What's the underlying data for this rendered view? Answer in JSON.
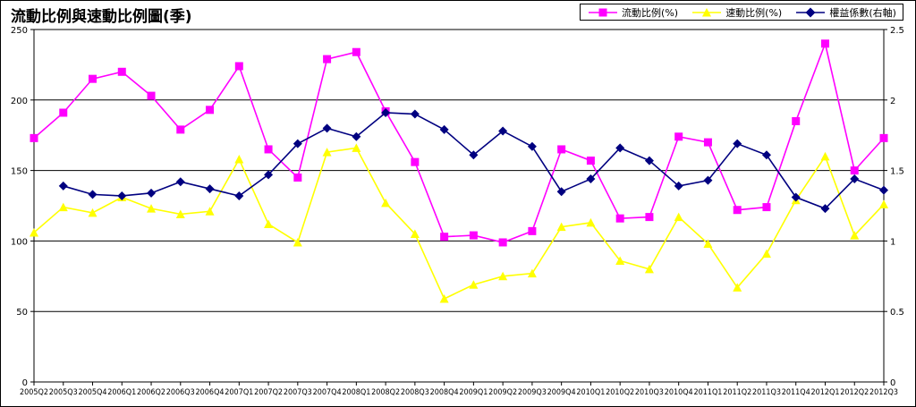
{
  "chart_data": {
    "type": "line",
    "title": "流動比例與速動比例圖(季)",
    "categories": [
      "2005Q2",
      "2005Q3",
      "2005Q4",
      "2006Q1",
      "2006Q2",
      "2006Q3",
      "2006Q4",
      "2007Q1",
      "2007Q2",
      "2007Q3",
      "2007Q4",
      "2008Q1",
      "2008Q2",
      "2008Q3",
      "2008Q4",
      "2009Q1",
      "2009Q2",
      "2009Q3",
      "2009Q4",
      "2010Q1",
      "2010Q2",
      "2010Q3",
      "2010Q4",
      "2011Q1",
      "2011Q2",
      "2011Q3",
      "2011Q4",
      "2012Q1",
      "2012Q2",
      "2012Q3"
    ],
    "y_left": {
      "min": 0,
      "max": 250,
      "ticks": [
        0,
        50,
        100,
        150,
        200,
        250
      ]
    },
    "y_right": {
      "min": 0,
      "max": 2.5,
      "ticks": [
        0,
        0.5,
        1,
        1.5,
        2,
        2.5
      ]
    },
    "grid": true,
    "legend_position": "top-right",
    "series": [
      {
        "name": "流動比例(%)",
        "axis": "left",
        "color": "#FF00FF",
        "marker": "square",
        "values": [
          173,
          191,
          215,
          220,
          203,
          179,
          193,
          224,
          165,
          145,
          229,
          234,
          192,
          156,
          103,
          104,
          99,
          107,
          165,
          157,
          116,
          117,
          174,
          170,
          122,
          124,
          185,
          240,
          150,
          173
        ]
      },
      {
        "name": "速動比例(%)",
        "axis": "left",
        "color": "#FFFF00",
        "marker": "triangle",
        "values": [
          106,
          124,
          120,
          131,
          123,
          119,
          121,
          158,
          112,
          99,
          163,
          166,
          127,
          105,
          59,
          69,
          75,
          77,
          110,
          113,
          86,
          80,
          117,
          98,
          67,
          91,
          129,
          160,
          104,
          126
        ]
      },
      {
        "name": "權益係數(右軸)",
        "axis": "right",
        "color": "#000080",
        "marker": "diamond",
        "values": [
          null,
          1.39,
          1.33,
          1.32,
          1.34,
          1.42,
          1.37,
          1.32,
          1.47,
          1.69,
          1.8,
          1.74,
          1.91,
          1.9,
          1.79,
          1.61,
          1.78,
          1.67,
          1.35,
          1.44,
          1.66,
          1.57,
          1.39,
          1.43,
          1.69,
          1.61,
          1.31,
          1.23,
          1.44,
          1.36
        ]
      }
    ]
  }
}
